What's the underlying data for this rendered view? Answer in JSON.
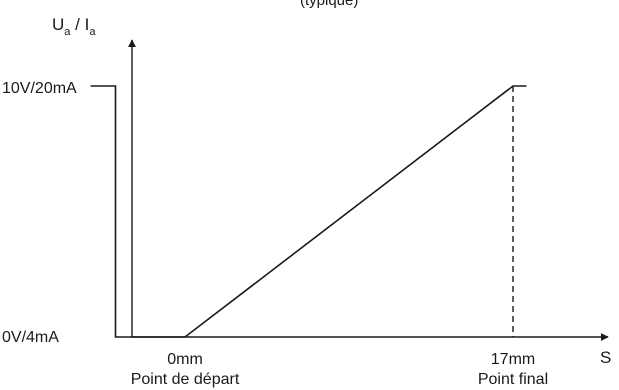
{
  "chart_data": {
    "type": "line",
    "title": "(typique)",
    "ylabel": {
      "main": "U",
      "sub1": "a",
      "sep": " / I",
      "sub2": "a"
    },
    "xlabel": "S",
    "y_ticks": [
      {
        "value": 0,
        "label": "0V/4mA"
      },
      {
        "value": 1,
        "label": "10V/20mA"
      }
    ],
    "x_ticks": [
      {
        "value": 0,
        "label": "0mm",
        "sublabel": "Point de départ"
      },
      {
        "value": 17,
        "label": "17mm",
        "sublabel": "Point final"
      }
    ],
    "xlim": [
      -4.9,
      17.7
    ],
    "ylim": [
      0,
      1
    ],
    "series": [
      {
        "x": [
          -4.9,
          -3.6,
          -3.6,
          0,
          17,
          17.7
        ],
        "y": [
          1,
          1,
          0,
          0,
          1,
          1
        ],
        "color": "#1a1a1a"
      }
    ],
    "reference_line": {
      "x": 17,
      "style": "dashed"
    }
  }
}
